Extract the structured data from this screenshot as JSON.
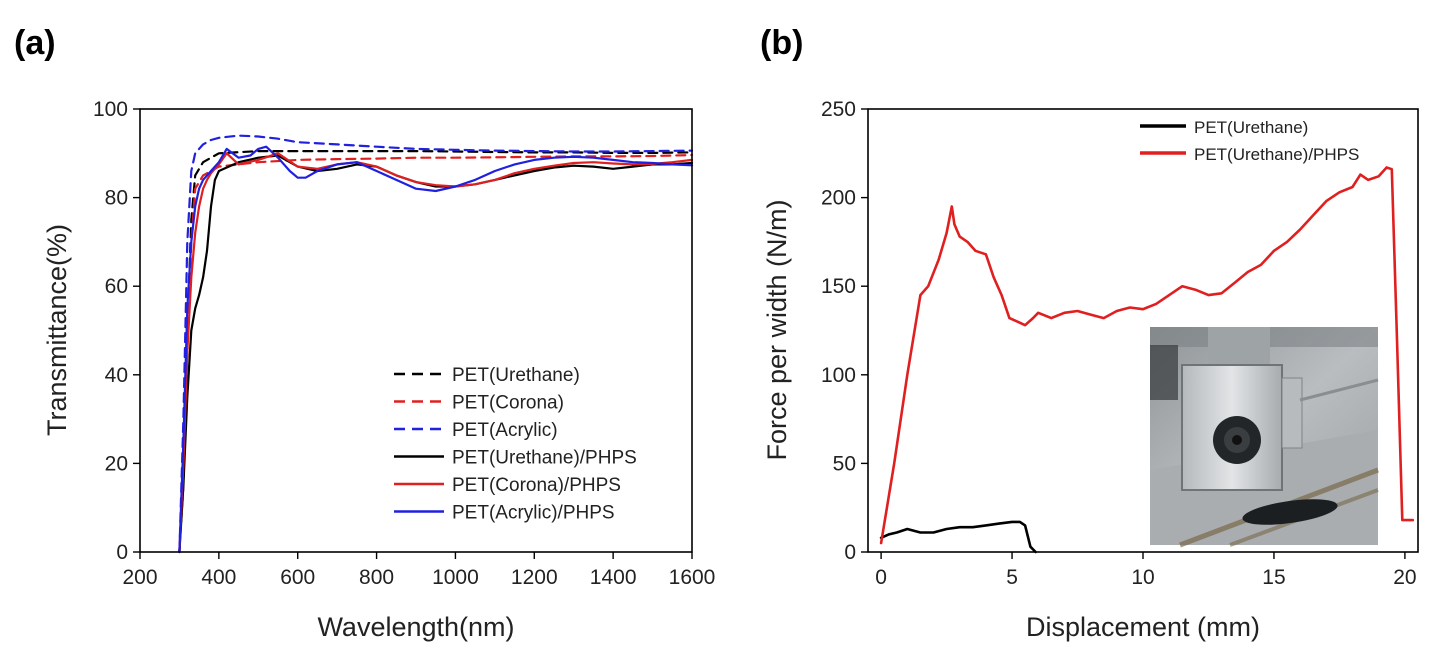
{
  "chart_data": [
    {
      "panel_label": "(a)",
      "type": "line",
      "xlabel": "Wavelength(nm)",
      "ylabel": "Transmittance(%)",
      "xlim": [
        200,
        1600
      ],
      "ylim": [
        0,
        100
      ],
      "xticks": [
        200,
        400,
        600,
        800,
        1000,
        1200,
        1400,
        1600
      ],
      "yticks": [
        0,
        20,
        40,
        60,
        80,
        100
      ],
      "legend_position": "lower-right",
      "series": [
        {
          "name": "PET(Urethane)",
          "color": "#000000",
          "dash": true,
          "x": [
            300,
            310,
            320,
            330,
            340,
            360,
            380,
            400,
            500,
            600,
            700,
            800,
            900,
            1000,
            1100,
            1200,
            1300,
            1400,
            1500,
            1600
          ],
          "y": [
            0,
            20,
            50,
            75,
            85,
            88,
            89,
            90,
            90.5,
            90.5,
            90.5,
            90.5,
            90.5,
            90.4,
            90.3,
            90.2,
            90.2,
            90.1,
            90.1,
            90.2
          ]
        },
        {
          "name": "PET(Corona)",
          "color": "#e02020",
          "dash": true,
          "x": [
            300,
            310,
            320,
            330,
            340,
            360,
            380,
            400,
            450,
            500,
            600,
            700,
            800,
            900,
            1000,
            1100,
            1200,
            1300,
            1400,
            1500,
            1600
          ],
          "y": [
            0,
            15,
            45,
            70,
            82,
            85,
            86,
            87,
            87.5,
            88,
            88.5,
            88.7,
            88.8,
            89,
            89,
            89.1,
            89.2,
            89.3,
            89.3,
            89.4,
            89.6
          ]
        },
        {
          "name": "PET(Acrylic)",
          "color": "#2020e0",
          "dash": true,
          "x": [
            300,
            310,
            320,
            330,
            340,
            360,
            380,
            400,
            450,
            500,
            550,
            600,
            700,
            800,
            900,
            1000,
            1100,
            1200,
            1300,
            1400,
            1500,
            1600
          ],
          "y": [
            0,
            30,
            70,
            86,
            90,
            92,
            93,
            93.5,
            94,
            93.8,
            93.3,
            92.5,
            92,
            91.5,
            91,
            90.8,
            90.6,
            90.5,
            90.4,
            90.4,
            90.5,
            90.6
          ]
        },
        {
          "name": "PET(Urethane)/PHPS",
          "color": "#000000",
          "dash": false,
          "x": [
            300,
            310,
            320,
            330,
            340,
            350,
            360,
            370,
            380,
            390,
            400,
            450,
            500,
            550,
            600,
            650,
            700,
            750,
            800,
            850,
            900,
            950,
            1000,
            1050,
            1100,
            1150,
            1200,
            1250,
            1300,
            1350,
            1400,
            1450,
            1500,
            1550,
            1600
          ],
          "y": [
            0,
            15,
            35,
            50,
            55,
            58,
            62,
            68,
            78,
            84,
            86,
            88,
            89,
            89.5,
            87,
            86,
            86.5,
            87.5,
            87,
            85,
            83.5,
            82.5,
            82.5,
            83,
            84,
            85,
            86,
            86.8,
            87.2,
            87,
            86.5,
            87,
            87.5,
            87.5,
            87.8
          ]
        },
        {
          "name": "PET(Corona)/PHPS",
          "color": "#e02020",
          "dash": false,
          "x": [
            300,
            310,
            320,
            330,
            340,
            350,
            360,
            370,
            380,
            390,
            400,
            420,
            450,
            500,
            550,
            600,
            650,
            700,
            750,
            800,
            850,
            900,
            950,
            1000,
            1050,
            1100,
            1150,
            1200,
            1250,
            1300,
            1350,
            1400,
            1450,
            1500,
            1550,
            1600
          ],
          "y": [
            0,
            20,
            45,
            62,
            72,
            78,
            82,
            84,
            85.5,
            86.5,
            87.5,
            90,
            87.5,
            88.5,
            90,
            87,
            86.5,
            87.5,
            88,
            87,
            85,
            83.5,
            82.8,
            82.5,
            83,
            84,
            85.5,
            86.5,
            87.2,
            87.8,
            88,
            87.7,
            87.5,
            87.6,
            88,
            88.5
          ]
        },
        {
          "name": "PET(Acrylic)/PHPS",
          "color": "#2020e0",
          "dash": false,
          "x": [
            300,
            310,
            320,
            330,
            340,
            350,
            360,
            380,
            400,
            420,
            450,
            480,
            500,
            520,
            550,
            580,
            600,
            620,
            650,
            700,
            750,
            800,
            850,
            900,
            950,
            1000,
            1050,
            1100,
            1150,
            1200,
            1250,
            1300,
            1350,
            1400,
            1450,
            1500,
            1550,
            1600
          ],
          "y": [
            0,
            25,
            55,
            70,
            78,
            82,
            84,
            86,
            88,
            91,
            89,
            89.5,
            91,
            91.5,
            89,
            86,
            84.5,
            84.5,
            86,
            87.5,
            88,
            86,
            84,
            82,
            81.5,
            82.5,
            84,
            86,
            87.5,
            88.5,
            89,
            89.2,
            89,
            88.5,
            88,
            87.8,
            87.5,
            87.3
          ]
        }
      ]
    },
    {
      "panel_label": "(b)",
      "type": "line",
      "xlabel": "Displacement (mm)",
      "ylabel": "Force per width (N/m)",
      "xlim": [
        -0.5,
        20.5
      ],
      "ylim": [
        0,
        250
      ],
      "xticks": [
        0,
        5,
        10,
        15,
        20
      ],
      "yticks": [
        0,
        50,
        100,
        150,
        200,
        250
      ],
      "legend_position": "top-right",
      "series": [
        {
          "name": "PET(Urethane)",
          "color": "#000000",
          "x": [
            0,
            0.3,
            0.6,
            1.0,
            1.5,
            2.0,
            2.5,
            3.0,
            3.5,
            4.0,
            4.5,
            5.0,
            5.3,
            5.5,
            5.7,
            5.9
          ],
          "y": [
            8,
            10,
            11,
            13,
            11,
            11,
            13,
            14,
            14,
            15,
            16,
            17,
            17,
            15,
            3,
            0
          ]
        },
        {
          "name": "PET(Urethane)/PHPS",
          "color": "#e02020",
          "x": [
            0,
            0.5,
            1.0,
            1.5,
            1.8,
            2.2,
            2.5,
            2.7,
            2.8,
            3.0,
            3.3,
            3.6,
            4.0,
            4.3,
            4.6,
            4.9,
            5.2,
            5.5,
            5.8,
            6.0,
            6.5,
            7.0,
            7.5,
            8.0,
            8.5,
            9.0,
            9.5,
            10.0,
            10.5,
            11.0,
            11.5,
            12.0,
            12.5,
            13.0,
            13.5,
            14.0,
            14.5,
            15.0,
            15.5,
            16.0,
            16.5,
            17.0,
            17.5,
            18.0,
            18.3,
            18.6,
            19.0,
            19.3,
            19.5,
            19.7,
            19.9,
            20.3
          ],
          "y": [
            5,
            50,
            100,
            145,
            150,
            165,
            180,
            195,
            185,
            178,
            175,
            170,
            168,
            155,
            145,
            132,
            130,
            128,
            132,
            135,
            132,
            135,
            136,
            134,
            132,
            136,
            138,
            137,
            140,
            145,
            150,
            148,
            145,
            146,
            152,
            158,
            162,
            170,
            175,
            182,
            190,
            198,
            203,
            206,
            213,
            210,
            212,
            217,
            216,
            120,
            18,
            18
          ]
        }
      ]
    }
  ]
}
